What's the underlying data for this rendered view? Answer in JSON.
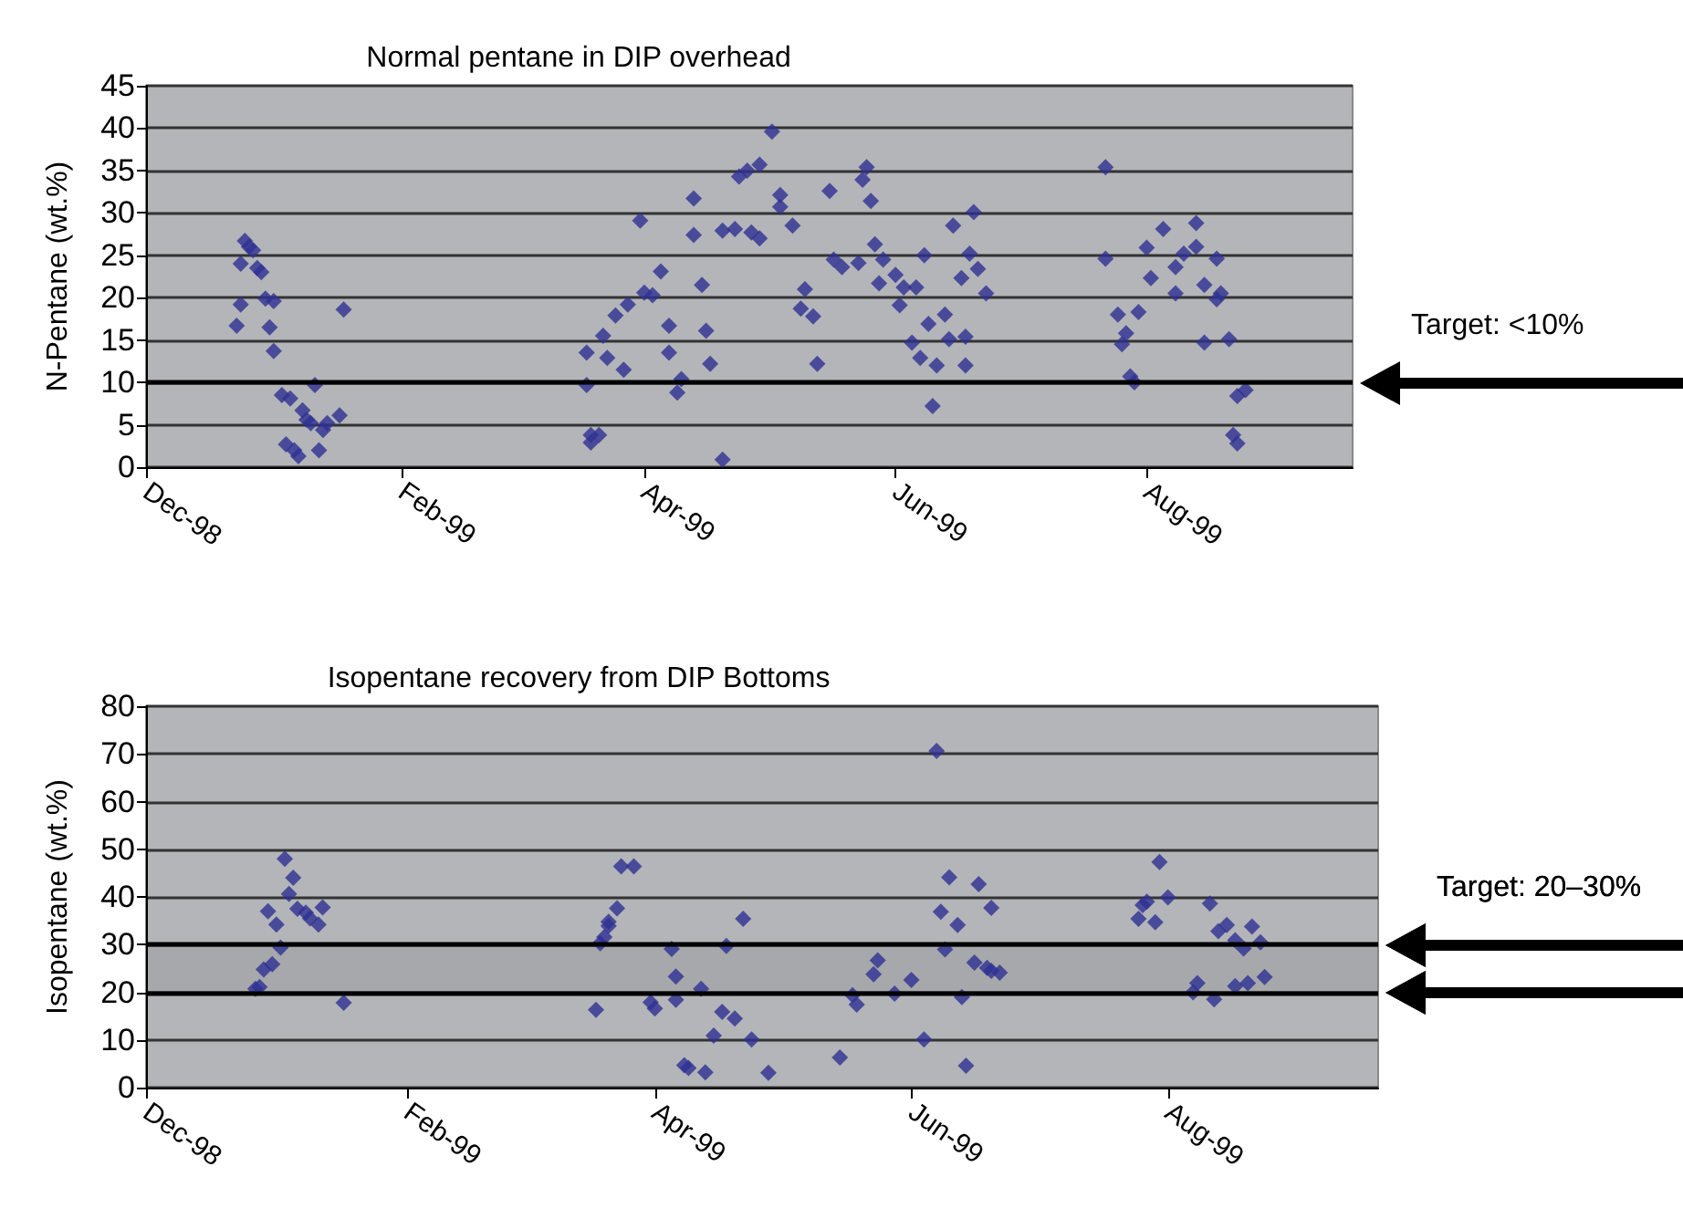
{
  "chart_data": [
    {
      "type": "scatter",
      "title": "Normal pentane in DIP overhead",
      "ylabel": "N-Pentane (wt.%)",
      "x": [
        "1998-12-23",
        "1998-12-24",
        "1998-12-24",
        "1998-12-25",
        "1998-12-26",
        "1998-12-27",
        "1998-12-28",
        "1998-12-29",
        "1998-12-30",
        "1998-12-31",
        "1999-01-01",
        "1999-01-01",
        "1999-01-03",
        "1999-01-04",
        "1999-01-05",
        "1999-01-06",
        "1999-01-07",
        "1999-01-08",
        "1999-01-09",
        "1999-01-10",
        "1999-01-11",
        "1999-01-12",
        "1999-01-13",
        "1999-01-14",
        "1999-01-17",
        "1999-01-18",
        "1999-03-18",
        "1999-03-18",
        "1999-03-19",
        "1999-03-19",
        "1999-03-21",
        "1999-03-22",
        "1999-03-23",
        "1999-03-25",
        "1999-03-28",
        "1999-03-27",
        "1999-03-31",
        "1999-04-01",
        "1999-04-03",
        "1999-04-05",
        "1999-04-07",
        "1999-04-07",
        "1999-04-09",
        "1999-04-10",
        "1999-04-13",
        "1999-04-13",
        "1999-04-15",
        "1999-04-16",
        "1999-04-17",
        "1999-04-20",
        "1999-04-20",
        "1999-04-23",
        "1999-04-24",
        "1999-04-26",
        "1999-04-27",
        "1999-04-29",
        "1999-04-29",
        "1999-05-02",
        "1999-05-04",
        "1999-05-04",
        "1999-05-07",
        "1999-05-10",
        "1999-05-09",
        "1999-05-12",
        "1999-05-13",
        "1999-05-16",
        "1999-05-17",
        "1999-05-19",
        "1999-05-23",
        "1999-05-24",
        "1999-05-25",
        "1999-05-26",
        "1999-05-27",
        "1999-05-29",
        "1999-05-28",
        "1999-06-01",
        "1999-06-03",
        "1999-06-02",
        "1999-06-06",
        "1999-06-08",
        "1999-06-05",
        "1999-06-07",
        "1999-06-09",
        "1999-06-10",
        "1999-06-11",
        "1999-06-13",
        "1999-06-14",
        "1999-06-15",
        "1999-06-17",
        "1999-06-18",
        "1999-06-18",
        "1999-06-20",
        "1999-06-19",
        "1999-06-21",
        "1999-06-23",
        "1999-07-22",
        "1999-07-22",
        "1999-07-25",
        "1999-07-26",
        "1999-07-27",
        "1999-07-28",
        "1999-07-29",
        "1999-07-30",
        "1999-08-01",
        "1999-08-02",
        "1999-08-05",
        "1999-08-08",
        "1999-08-08",
        "1999-08-10",
        "1999-08-13",
        "1999-08-13",
        "1999-08-15",
        "1999-08-15",
        "1999-08-18",
        "1999-08-18",
        "1999-08-19",
        "1999-08-21",
        "1999-08-23",
        "1999-08-25",
        "1999-08-22",
        "1999-08-23"
      ],
      "values": [
        16.7,
        19.2,
        24,
        26.7,
        26,
        25.6,
        23.5,
        23,
        19.9,
        16.5,
        19.6,
        13.7,
        8.5,
        2.7,
        8.1,
        2,
        1.3,
        6.7,
        5.6,
        5.2,
        9.7,
        2,
        4.4,
        5.2,
        6.1,
        18.6,
        9.7,
        13.5,
        3.8,
        2.9,
        3.8,
        15.5,
        12.9,
        17.9,
        19.2,
        11.5,
        29.1,
        20.6,
        20.3,
        23.1,
        16.7,
        13.5,
        8.8,
        10.4,
        31.7,
        27.4,
        21.5,
        16.1,
        12.2,
        0.9,
        27.9,
        28.1,
        34.3,
        35,
        27.7,
        27,
        35.7,
        39.6,
        32.1,
        30.7,
        28.5,
        21,
        18.7,
        17.8,
        12.2,
        32.6,
        24.5,
        23.6,
        24.1,
        33.9,
        35.4,
        31.4,
        26.3,
        24.5,
        21.7,
        22.7,
        21.2,
        19.1,
        21.2,
        25,
        14.7,
        12.9,
        16.9,
        7.2,
        12,
        18,
        15.1,
        28.5,
        22.3,
        12,
        15.4,
        30.1,
        25.2,
        23.4,
        20.5,
        35.4,
        24.6,
        18,
        14.5,
        15.8,
        10.7,
        10,
        18.3,
        25.9,
        22.3,
        28.1,
        20.5,
        23.6,
        25.2,
        28.8,
        26,
        21.5,
        14.7,
        24.6,
        19.8,
        20.5,
        15.1,
        8.4,
        9.1,
        3.8,
        2.8
      ],
      "color": "#2e3192",
      "marker": "diamond",
      "grid": "y",
      "xlim": [
        "1998-12-01",
        "1999-09-20"
      ],
      "xticks": [
        {
          "value": "1998-12-01",
          "label": "Dec-98"
        },
        {
          "value": "1999-02-01",
          "label": "Feb-99"
        },
        {
          "value": "1999-04-01",
          "label": "Apr-99"
        },
        {
          "value": "1999-06-01",
          "label": "Jun-99"
        },
        {
          "value": "1999-08-01",
          "label": "Aug-99"
        }
      ],
      "ylim": [
        0,
        45
      ],
      "yticks": [
        0,
        5,
        10,
        15,
        20,
        25,
        30,
        35,
        40,
        45
      ],
      "ref_lines": [
        {
          "axis": "y",
          "value": 10,
          "label": "Target: <10%"
        }
      ]
    },
    {
      "type": "scatter",
      "title": "Isopentane recovery from DIP Bottoms",
      "ylabel": "Isopentane (wt.%)",
      "x": [
        "1998-12-27",
        "1998-12-28",
        "1998-12-29",
        "1998-12-31",
        "1998-12-30",
        "1999-01-01",
        "1999-01-02",
        "1999-01-03",
        "1999-01-04",
        "1999-01-05",
        "1999-01-06",
        "1999-01-08",
        "1999-01-09",
        "1999-01-11",
        "1999-01-12",
        "1999-01-17",
        "1999-03-18",
        "1999-03-19",
        "1999-03-20",
        "1999-03-21",
        "1999-03-21",
        "1999-03-23",
        "1999-03-24",
        "1999-03-27",
        "1999-03-31",
        "1999-04-01",
        "1999-04-05",
        "1999-04-06",
        "1999-04-06",
        "1999-04-08",
        "1999-04-09",
        "1999-04-12",
        "1999-04-13",
        "1999-04-15",
        "1999-04-17",
        "1999-04-18",
        "1999-04-20",
        "1999-04-22",
        "1999-04-24",
        "1999-04-28",
        "1999-05-15",
        "1999-05-18",
        "1999-05-19",
        "1999-05-23",
        "1999-05-24",
        "1999-05-28",
        "1999-06-01",
        "1999-06-04",
        "1999-06-07",
        "1999-06-08",
        "1999-06-09",
        "1999-06-10",
        "1999-06-12",
        "1999-06-13",
        "1999-06-14",
        "1999-06-16",
        "1999-06-17",
        "1999-06-19",
        "1999-06-20",
        "1999-06-20",
        "1999-06-22",
        "1999-07-25",
        "1999-07-26",
        "1999-07-27",
        "1999-07-29",
        "1999-07-30",
        "1999-08-01",
        "1999-08-07",
        "1999-08-08",
        "1999-08-11",
        "1999-08-12",
        "1999-08-13",
        "1999-08-15",
        "1999-08-17",
        "1999-08-17",
        "1999-08-19",
        "1999-08-20",
        "1999-08-21",
        "1999-08-23",
        "1999-08-24"
      ],
      "values": [
        20.7,
        21.1,
        24.8,
        25.9,
        37,
        34.2,
        29.4,
        48,
        40.6,
        44,
        37.5,
        36.7,
        35.5,
        34.2,
        37.8,
        17.8,
        16.3,
        30.3,
        31.6,
        33.9,
        34.8,
        37.6,
        46.4,
        46.4,
        17.9,
        16.6,
        29.1,
        23.3,
        18.4,
        4.7,
        4.1,
        20.7,
        3.2,
        10.9,
        15.9,
        29.7,
        14.5,
        35.4,
        10.1,
        3.1,
        6.3,
        19.4,
        17.4,
        23.8,
        26.7,
        19.7,
        22.6,
        10.1,
        70.6,
        36.9,
        29,
        44.1,
        34.1,
        19,
        4.6,
        26.2,
        42.7,
        25.1,
        37.7,
        24.5,
        24.1,
        35.4,
        38.3,
        39,
        34.7,
        47.3,
        39.9,
        20,
        21.9,
        38.6,
        18.5,
        32.8,
        34.1,
        30.9,
        21.3,
        29.2,
        21.9,
        33.8,
        30.5,
        23.2
      ],
      "color": "#2e3192",
      "marker": "diamond",
      "grid": "y",
      "xlim": [
        "1998-12-01",
        "1999-09-20"
      ],
      "xticks": [
        {
          "value": "1998-12-01",
          "label": "Dec-98"
        },
        {
          "value": "1999-02-01",
          "label": "Feb-99"
        },
        {
          "value": "1999-04-01",
          "label": "Apr-99"
        },
        {
          "value": "1999-06-01",
          "label": "Jun-99"
        },
        {
          "value": "1999-08-01",
          "label": "Aug-99"
        }
      ],
      "ylim": [
        0,
        80
      ],
      "yticks": [
        0,
        10,
        20,
        30,
        40,
        50,
        60,
        70,
        80
      ],
      "bands": [
        {
          "axis": "y",
          "from": 20,
          "to": 30,
          "label": "Target: 20–30%"
        }
      ]
    }
  ]
}
